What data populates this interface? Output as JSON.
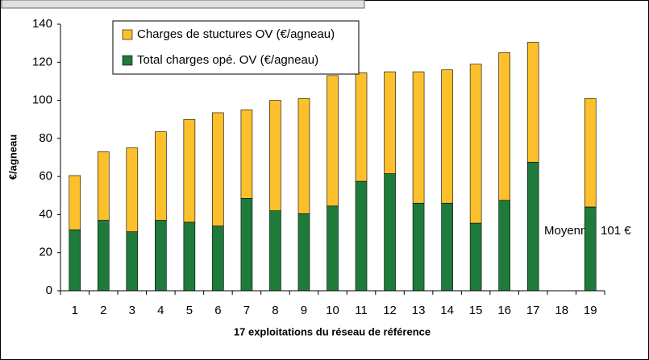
{
  "chart_data": {
    "type": "stacked_bar",
    "categories": [
      "1",
      "2",
      "3",
      "4",
      "5",
      "6",
      "7",
      "8",
      "9",
      "10",
      "11",
      "12",
      "13",
      "14",
      "15",
      "16",
      "17",
      "18",
      "19"
    ],
    "series": [
      {
        "name": "Total charges opé. OV (€/agneau)",
        "color": "#1e7b3c",
        "values": [
          32,
          37,
          31,
          37,
          36,
          34,
          48.5,
          42,
          40.5,
          44.5,
          57.5,
          61.5,
          46,
          46,
          35.5,
          47.5,
          67.5,
          null,
          44
        ]
      },
      {
        "name": "Charges de stuctures OV (€/agneau)",
        "color": "#fcc02c",
        "values": [
          28.5,
          36,
          44,
          46.5,
          54,
          59.5,
          46.5,
          58,
          60.5,
          68.5,
          57,
          53.5,
          69,
          70,
          83.5,
          77.5,
          63,
          null,
          57
        ]
      }
    ],
    "ylabel": "€/agneau",
    "xlabel": "17 exploitations du réseau de référence",
    "annotation": "Moyenne: 101 €",
    "ylim": [
      0,
      140
    ],
    "yticks": [
      0,
      20,
      40,
      60,
      80,
      100,
      120,
      140
    ]
  }
}
